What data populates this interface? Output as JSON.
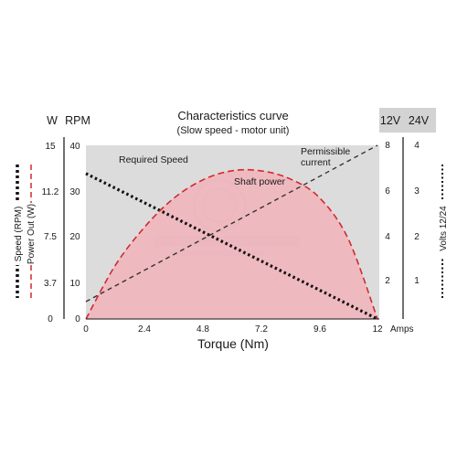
{
  "chart_data": {
    "type": "line",
    "title": "Characteristics curve",
    "subtitle": "(Slow speed - motor unit)",
    "xlabel": "Torque (Nm)",
    "x_unit_label": "Amps",
    "x_ticks": [
      "0",
      "2.4",
      "4.8",
      "7.2",
      "9.6",
      "12"
    ],
    "xlim": [
      0,
      12
    ],
    "grid": false,
    "left_axes": [
      {
        "header": "W",
        "ticks": [
          "0",
          "3.7",
          "7.5",
          "11.2",
          "15"
        ],
        "range": [
          0,
          15
        ]
      },
      {
        "header": "RPM",
        "ticks": [
          "0",
          "10",
          "20",
          "30",
          "40"
        ],
        "range": [
          0,
          40
        ]
      }
    ],
    "right_axes": [
      {
        "header": "12V",
        "ticks": [
          "2",
          "4",
          "6",
          "8"
        ],
        "range": [
          0,
          8
        ]
      },
      {
        "header": "24V",
        "ticks": [
          "1",
          "2",
          "3",
          "4"
        ],
        "range": [
          0,
          4
        ]
      }
    ],
    "left_legend": [
      {
        "label": "Speed (RPM)",
        "style": "dotted",
        "color": "#111111"
      },
      {
        "label": "Power Out (W)",
        "style": "dashed",
        "color": "#d42a2a"
      }
    ],
    "right_legend": [
      {
        "label": "Volts 12/24",
        "style": "dotted",
        "color": "#111111"
      }
    ],
    "annotations": {
      "speed": "Required Speed",
      "power": "Shaft power",
      "current_line1": "Permissible",
      "current_line2": "current"
    },
    "series": [
      {
        "name": "Required Speed",
        "axis": "RPM",
        "style": "dotted",
        "color": "#111111",
        "x": [
          0,
          12
        ],
        "y": [
          33.5,
          0
        ]
      },
      {
        "name": "Shaft power",
        "axis": "W",
        "style": "dashed",
        "color": "#d42a2a",
        "fill": "#f2b3bb",
        "x": [
          0,
          1.2,
          2.4,
          3.6,
          4.8,
          6,
          7.2,
          8.4,
          9.6,
          10.8,
          12
        ],
        "y": [
          0,
          4.6,
          7.9,
          10.4,
          12.0,
          12.8,
          12.8,
          12.1,
          10.5,
          6.9,
          0
        ]
      },
      {
        "name": "Permissible current",
        "axis": "12V",
        "style": "dashed",
        "color": "#333333",
        "x": [
          0,
          12
        ],
        "y": [
          0.8,
          8
        ]
      }
    ],
    "colors": {
      "plot_bg": "#dcdcdd",
      "header_bg": "#d3d3d3"
    }
  }
}
